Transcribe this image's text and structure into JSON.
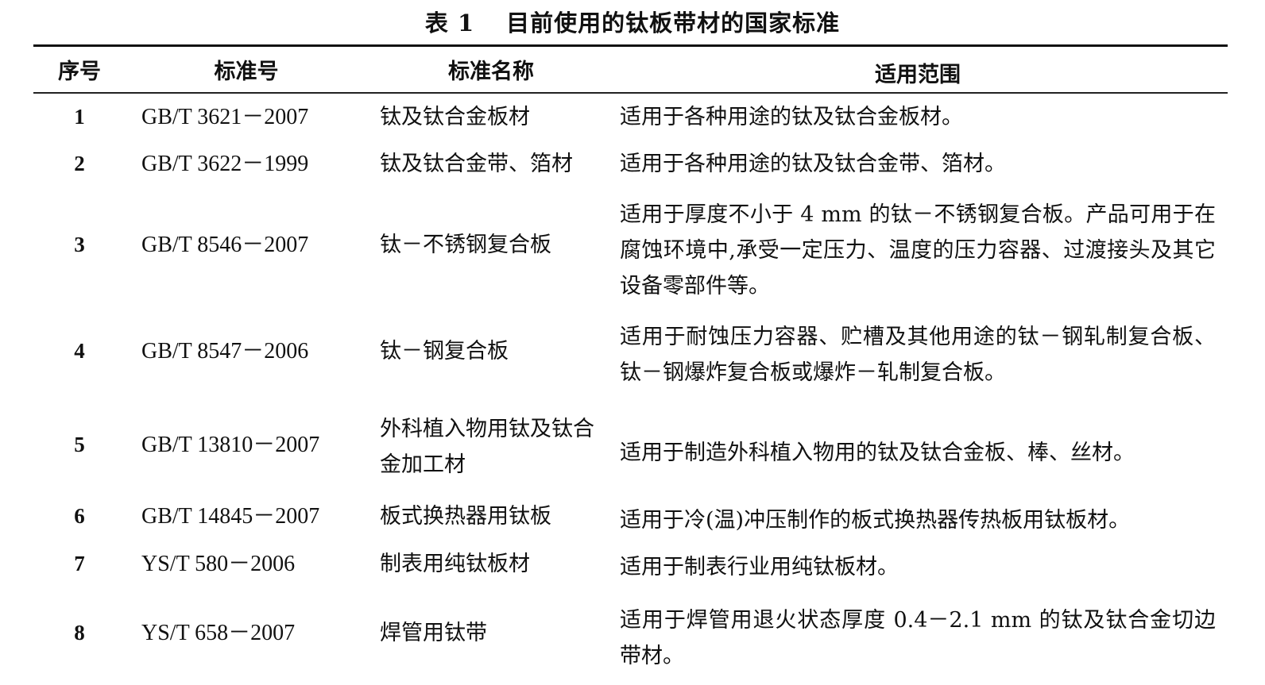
{
  "table": {
    "number": "表 1",
    "title": "目前使用的钛板带材的国家标准",
    "headers": [
      "序号",
      "标准号",
      "标准名称",
      "适用范围"
    ],
    "rows": [
      {
        "no": "1",
        "code": "GB/T 3621－2007",
        "name": "钛及钛合金板材",
        "scope": "适用于各种用途的钛及钛合金板材。"
      },
      {
        "no": "2",
        "code": "GB/T 3622－1999",
        "name": "钛及钛合金带、箔材",
        "scope": "适用于各种用途的钛及钛合金带、箔材。"
      },
      {
        "no": "3",
        "code": "GB/T 8546－2007",
        "name": "钛－不锈钢复合板",
        "scope": "适用于厚度不小于 4 mm 的钛－不锈钢复合板。产品可用于在腐蚀环境中,承受一定压力、温度的压力容器、过渡接头及其它设备零部件等。"
      },
      {
        "no": "4",
        "code": "GB/T 8547－2006",
        "name": "钛－钢复合板",
        "scope": "适用于耐蚀压力容器、贮槽及其他用途的钛－钢轧制复合板、钛－钢爆炸复合板或爆炸－轧制复合板。"
      },
      {
        "no": "5",
        "code": "GB/T 13810－2007",
        "name": "外科植入物用钛及钛合金加工材",
        "scope": "适用于制造外科植入物用的钛及钛合金板、棒、丝材。"
      },
      {
        "no": "6",
        "code": "GB/T 14845－2007",
        "name": "板式换热器用钛板",
        "scope": "适用于冷(温)冲压制作的板式换热器传热板用钛板材。"
      },
      {
        "no": "7",
        "code": "YS/T 580－2006",
        "name": "制表用纯钛板材",
        "scope": "适用于制表行业用纯钛板材。"
      },
      {
        "no": "8",
        "code": "YS/T 658－2007",
        "name": "焊管用钛带",
        "scope": "适用于焊管用退火状态厚度 0.4－2.1 mm 的钛及钛合金切边带材。"
      }
    ]
  }
}
